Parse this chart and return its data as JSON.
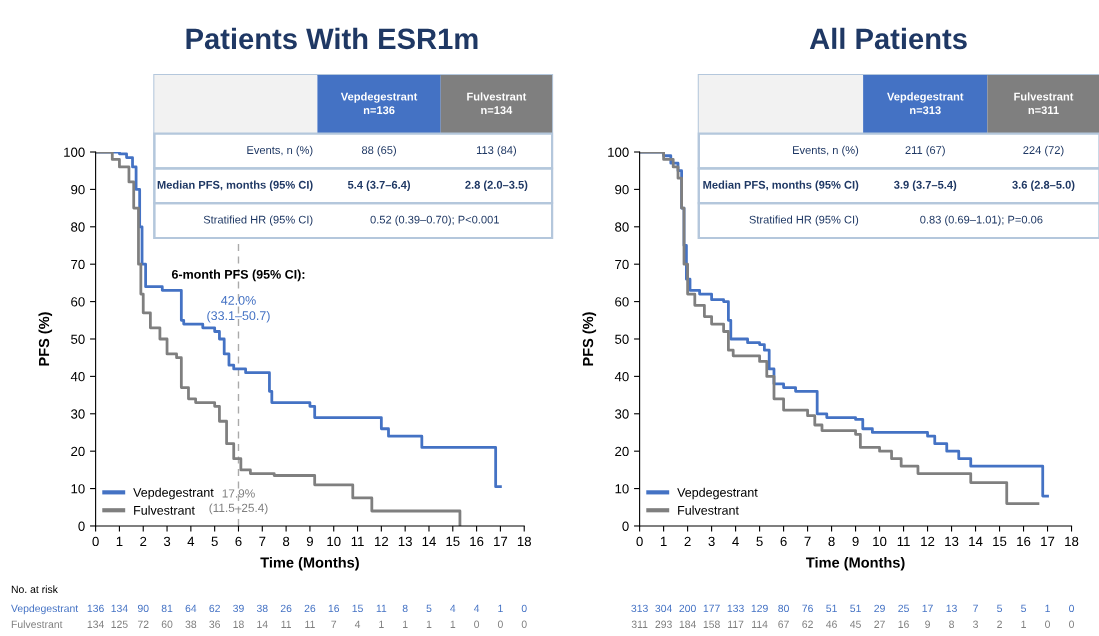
{
  "chart_data": [
    {
      "type": "step",
      "title": "Patients With ESR1m",
      "xlabel": "Time (Months)",
      "ylabel": "PFS (%)",
      "xlim": [
        0,
        18
      ],
      "xticks": [
        0,
        1,
        2,
        3,
        4,
        5,
        6,
        7,
        8,
        9,
        10,
        11,
        12,
        13,
        14,
        15,
        16,
        17,
        18
      ],
      "ylim": [
        0,
        100
      ],
      "yticks": [
        0,
        10,
        20,
        30,
        40,
        50,
        60,
        70,
        80,
        90,
        100
      ],
      "grid": false,
      "legend": "bottom left",
      "series": [
        {
          "name": "Vepdegestrant",
          "color": "#4472c4",
          "x": [
            0,
            1.0,
            1.3,
            1.55,
            1.7,
            1.85,
            1.95,
            2.1,
            2.8,
            3.6,
            3.7,
            4.5,
            5.0,
            5.2,
            5.4,
            5.6,
            5.8,
            6.3,
            7.3,
            7.4,
            9.0,
            9.2,
            12.0,
            12.3,
            13.7,
            16.8,
            17.0
          ],
          "values": [
            100,
            99.5,
            98.5,
            96,
            90,
            80,
            70,
            64,
            63,
            55,
            54,
            53,
            52,
            50,
            46,
            43,
            42,
            41,
            36,
            33,
            32,
            29,
            26,
            24,
            21,
            10.5,
            10.5
          ]
        },
        {
          "name": "Fulvestrant",
          "color": "#7f7f7f",
          "x": [
            0,
            0.7,
            1.0,
            1.4,
            1.6,
            1.8,
            1.9,
            2.0,
            2.3,
            2.7,
            3.0,
            3.4,
            3.6,
            3.9,
            4.2,
            5.0,
            5.2,
            5.5,
            5.8,
            6.1,
            6.5,
            7.5,
            9.2,
            10.8,
            11.6,
            15.3
          ],
          "values": [
            100,
            98,
            96,
            92,
            85,
            70,
            62,
            57,
            53,
            50,
            46,
            45,
            37,
            34,
            33,
            32,
            28,
            22,
            18,
            15,
            14,
            13.5,
            11,
            7.5,
            4,
            0
          ]
        }
      ],
      "ref_lines": [
        {
          "axis": "x",
          "value": 6,
          "color": "#aaaaaa",
          "line_style": "dashed"
        }
      ],
      "annotations": [
        "Vepdegestrant\nn=136",
        "Fulvestrant\nn=134",
        "Events, n (%)",
        "88 (65)",
        "113 (84)",
        "Median PFS, months (95% CI)",
        "5.4 (3.7–6.4)",
        "2.8 (2.0–3.5)",
        "Stratified HR (95% CI)",
        "0.52 (0.39–0.70); P<0.001",
        "6-month PFS (95% CI):",
        "42.0%\n(33.1–50.7)",
        "17.9%\n(11.5–25.4)",
        "No. at risk",
        "Vepdegestrant",
        "Fulvestrant",
        "136 134 90 81 64 62 39 38 26 26 16 15 11 8 5 4 4 1 0",
        "134 125 72 60 38 36 18 14 11 11 7 4 1 1 1 1 0 0 0"
      ]
    },
    {
      "type": "step",
      "title": "All Patients",
      "xlabel": "Time (Months)",
      "ylabel": "PFS (%)",
      "xlim": [
        0,
        18
      ],
      "xticks": [
        0,
        1,
        2,
        3,
        4,
        5,
        6,
        7,
        8,
        9,
        10,
        11,
        12,
        13,
        14,
        15,
        16,
        17,
        18
      ],
      "ylim": [
        0,
        100
      ],
      "yticks": [
        0,
        10,
        20,
        30,
        40,
        50,
        60,
        70,
        80,
        90,
        100
      ],
      "grid": false,
      "legend": "bottom left",
      "series": [
        {
          "name": "Vepdegestrant",
          "color": "#4472c4",
          "x": [
            0,
            1.0,
            1.3,
            1.6,
            1.75,
            1.85,
            1.95,
            2.1,
            2.5,
            3.0,
            3.5,
            3.7,
            3.8,
            4.5,
            5.0,
            5.2,
            5.4,
            5.6,
            6.0,
            6.5,
            7.4,
            7.8,
            9.0,
            9.3,
            9.7,
            12.0,
            12.3,
            12.8,
            13.3,
            13.8,
            16.8,
            17.0
          ],
          "values": [
            100,
            99,
            97,
            95,
            85,
            75,
            66,
            63,
            62,
            60.5,
            60,
            55,
            50,
            49,
            48.5,
            47,
            42,
            38,
            37,
            36,
            30,
            29,
            28.5,
            26,
            25,
            24,
            22,
            20,
            18,
            16,
            8,
            8
          ]
        },
        {
          "name": "Fulvestrant",
          "color": "#7f7f7f",
          "x": [
            0,
            1.0,
            1.4,
            1.6,
            1.75,
            1.85,
            2.0,
            2.3,
            2.7,
            3.0,
            3.5,
            3.7,
            3.9,
            5.0,
            5.3,
            5.6,
            6.0,
            7.0,
            7.3,
            7.6,
            9.0,
            9.2,
            10.0,
            10.5,
            10.9,
            11.6,
            13.8,
            15.3,
            16.6
          ],
          "values": [
            100,
            98,
            96,
            93,
            85,
            70,
            62,
            59,
            56,
            54,
            52,
            47,
            45.5,
            44,
            40,
            34,
            31,
            29.5,
            27,
            25.5,
            24.5,
            21,
            20,
            18,
            16,
            14,
            11.6,
            6,
            6
          ]
        }
      ],
      "annotations": [
        "Vepdegestrant\nn=313",
        "Fulvestrant\nn=311",
        "Events, n (%)",
        "211 (67)",
        "224 (72)",
        "Median PFS, months (95% CI)",
        "3.9 (3.7–5.4)",
        "3.6 (2.8–5.0)",
        "Stratified HR (95% CI)",
        "0.83 (0.69–1.01); P=0.06",
        "313 304 200 177 133 129 80 76 51 51 29 25 17 13 7 5 5 1 0",
        "311 293 184 158 117 114 67 62 46 45 27 16 9 8 3 2 1 0 0"
      ]
    }
  ]
}
